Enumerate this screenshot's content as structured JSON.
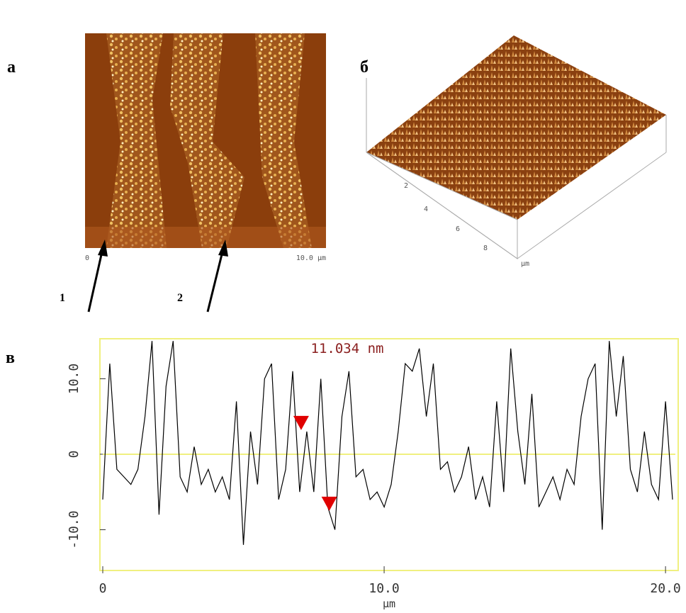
{
  "labels": {
    "panel_a": "а",
    "panel_b": "б",
    "panel_c": "в",
    "arrow_1": "1",
    "arrow_2": "2",
    "image_a_x_start": "0",
    "image_a_x_end": "10.0 µm",
    "image_b_ticks": [
      "2",
      "4",
      "6",
      "8"
    ],
    "image_b_unit": "µm"
  },
  "chart_data": {
    "type": "line",
    "annotation": "11.034 nm",
    "x_label": "µm",
    "color": "#000000",
    "zero_line_color": "#f0f080",
    "frame_color": "#f0f080",
    "marker_color": "#e00000",
    "xlim": [
      0,
      20.35
    ],
    "ylim": [
      -15.4,
      15.3
    ],
    "xticks": [
      0,
      {
        "value": 10,
        "label": "10.0"
      },
      {
        "value": 20,
        "label": "20.0"
      }
    ],
    "yticks": [
      {
        "value": -10,
        "label": "-10.0"
      },
      0,
      {
        "value": 10,
        "label": "10.0"
      }
    ],
    "markers": [
      {
        "x": 7.05,
        "y": 3.2
      },
      {
        "x": 8.05,
        "y": -7.5
      }
    ],
    "x": [
      0,
      0.25,
      0.5,
      0.75,
      1,
      1.25,
      1.5,
      1.75,
      2,
      2.25,
      2.5,
      2.75,
      3,
      3.25,
      3.5,
      3.75,
      4,
      4.25,
      4.5,
      4.75,
      5,
      5.25,
      5.5,
      5.75,
      6,
      6.25,
      6.5,
      6.75,
      7,
      7.25,
      7.5,
      7.75,
      8,
      8.25,
      8.5,
      8.75,
      9,
      9.25,
      9.5,
      9.75,
      10,
      10.25,
      10.5,
      10.75,
      11,
      11.25,
      11.5,
      11.75,
      12,
      12.25,
      12.5,
      12.75,
      13,
      13.25,
      13.5,
      13.75,
      14,
      14.25,
      14.5,
      14.75,
      15,
      15.25,
      15.5,
      15.75,
      16,
      16.25,
      16.5,
      16.75,
      17,
      17.25,
      17.5,
      17.75,
      18,
      18.25,
      18.5,
      18.75,
      19,
      19.25,
      19.5,
      19.75,
      20,
      20.25
    ],
    "values": [
      -6,
      12,
      -2,
      -3,
      -4,
      -2,
      5,
      15,
      -8,
      9,
      15,
      -3,
      -5,
      1,
      -4,
      -2,
      -5,
      -3,
      -6,
      7,
      -12,
      3,
      -4,
      10,
      12,
      -6,
      -2,
      11,
      -5,
      3,
      -5,
      10,
      -7,
      -10,
      5,
      11,
      -3,
      -2,
      -6,
      -5,
      -7,
      -4,
      3,
      12,
      11,
      14,
      5,
      12,
      -2,
      -1,
      -5,
      -3,
      1,
      -6,
      -3,
      -7,
      7,
      -5,
      14,
      3,
      -4,
      8,
      -7,
      -5,
      -3,
      -6,
      -2,
      -4,
      5,
      10,
      12,
      -10,
      15,
      5,
      13,
      -2,
      -5,
      3,
      -4,
      -6,
      7,
      -6
    ]
  }
}
